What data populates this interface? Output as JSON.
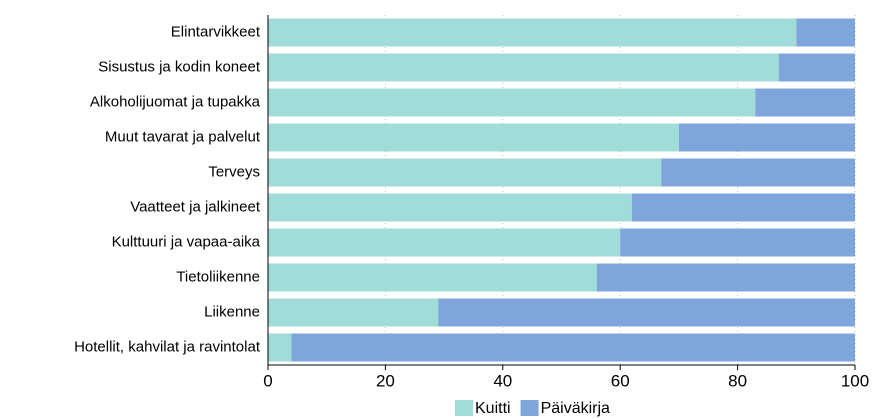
{
  "chart_data": {
    "type": "stacked_barh",
    "categories": [
      "Elintarvikkeet",
      "Sisustus ja kodin koneet",
      "Alkoholijuomat ja tupakka",
      "Muut tavarat ja palvelut",
      "Terveys",
      "Vaatteet ja jalkineet",
      "Kulttuuri ja vapaa-aika",
      "Tietoliikenne",
      "Liikenne",
      "Hotellit, kahvilat ja ravintolat"
    ],
    "series": [
      {
        "name": "Kuitti",
        "color": "#a0dcd8",
        "values": [
          90,
          87,
          83,
          70,
          67,
          62,
          60,
          56,
          29,
          4
        ]
      },
      {
        "name": "Päiväkirja",
        "color": "#7fa6dc",
        "values": [
          10,
          13,
          17,
          30,
          33,
          38,
          40,
          44,
          71,
          96
        ]
      }
    ],
    "xlim": [
      0,
      100
    ],
    "xticks": [
      0,
      20,
      40,
      60,
      80,
      100
    ],
    "grid": true,
    "legend": "bottom"
  }
}
